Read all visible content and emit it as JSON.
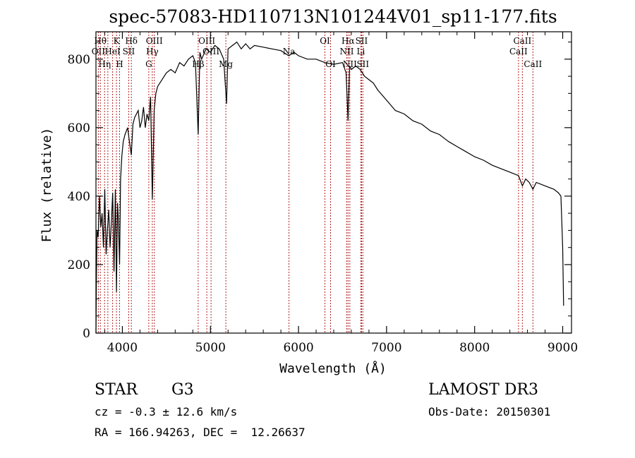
{
  "chart_data": {
    "type": "line",
    "title": "spec-57083-HD110713N101244V01_sp11-177.fits",
    "xlabel": "Wavelength (Å)",
    "ylabel": "Flux (relative)",
    "xlim": [
      3700,
      9100
    ],
    "ylim": [
      0,
      880
    ],
    "xticks": [
      4000,
      5000,
      6000,
      7000,
      8000,
      9000
    ],
    "yticks": [
      0,
      200,
      400,
      600,
      800
    ],
    "series": [
      {
        "name": "flux",
        "x": [
          3700,
          3705,
          3712,
          3725,
          3740,
          3755,
          3770,
          3785,
          3800,
          3815,
          3830,
          3845,
          3860,
          3875,
          3890,
          3905,
          3920,
          3933,
          3945,
          3955,
          3968,
          3980,
          3995,
          4010,
          4030,
          4060,
          4080,
          4101,
          4120,
          4140,
          4160,
          4180,
          4200,
          4220,
          4240,
          4260,
          4280,
          4300,
          4320,
          4340,
          4361,
          4380,
          4400,
          4450,
          4500,
          4550,
          4600,
          4650,
          4700,
          4750,
          4800,
          4830,
          4861,
          4880,
          4900,
          4950,
          5000,
          5050,
          5100,
          5150,
          5183,
          5200,
          5250,
          5300,
          5350,
          5400,
          5450,
          5500,
          5600,
          5700,
          5800,
          5890,
          5950,
          6000,
          6100,
          6200,
          6300,
          6400,
          6500,
          6540,
          6563,
          6580,
          6600,
          6650,
          6700,
          6750,
          6800,
          6850,
          6900,
          7000,
          7100,
          7200,
          7300,
          7400,
          7500,
          7600,
          7700,
          7800,
          7900,
          8000,
          8100,
          8200,
          8300,
          8400,
          8498,
          8542,
          8580,
          8620,
          8662,
          8700,
          8800,
          8900,
          8950,
          8980,
          9000,
          9010
        ],
        "y": [
          0,
          150,
          300,
          280,
          400,
          310,
          350,
          250,
          420,
          230,
          300,
          360,
          250,
          320,
          410,
          180,
          420,
          120,
          380,
          330,
          200,
          450,
          520,
          560,
          580,
          600,
          560,
          520,
          610,
          630,
          640,
          650,
          600,
          620,
          660,
          600,
          640,
          620,
          690,
          390,
          650,
          700,
          720,
          740,
          760,
          770,
          760,
          790,
          780,
          800,
          810,
          790,
          580,
          820,
          800,
          830,
          820,
          840,
          830,
          800,
          670,
          830,
          840,
          850,
          830,
          845,
          830,
          840,
          835,
          830,
          825,
          810,
          820,
          810,
          800,
          800,
          790,
          785,
          790,
          760,
          620,
          780,
          770,
          780,
          770,
          750,
          740,
          730,
          710,
          680,
          650,
          640,
          620,
          610,
          590,
          580,
          560,
          545,
          530,
          515,
          505,
          490,
          480,
          470,
          460,
          430,
          450,
          440,
          420,
          440,
          430,
          420,
          410,
          400,
          250,
          80
        ]
      }
    ],
    "line_markers": [
      {
        "wl": 3750,
        "label": "Hθ",
        "row": 1
      },
      {
        "wl": 3727,
        "label": "OII",
        "row": 2
      },
      {
        "wl": 3798,
        "label": "Hη",
        "row": 3
      },
      {
        "wl": 3835,
        "label": "",
        "row": 0
      },
      {
        "wl": 3889,
        "label": "HeI",
        "row": 2
      },
      {
        "wl": 3933,
        "label": "K",
        "row": 1
      },
      {
        "wl": 3968,
        "label": "H",
        "row": 3
      },
      {
        "wl": 4072,
        "label": "SII",
        "row": 2
      },
      {
        "wl": 4102,
        "label": "Hδ",
        "row": 1
      },
      {
        "wl": 4300,
        "label": "G",
        "row": 3
      },
      {
        "wl": 4340,
        "label": "Hγ",
        "row": 2
      },
      {
        "wl": 4363,
        "label": "OIII",
        "row": 1
      },
      {
        "wl": 4861,
        "label": "Hβ",
        "row": 3
      },
      {
        "wl": 4959,
        "label": "OIII",
        "row": 1
      },
      {
        "wl": 5007,
        "label": "OIII",
        "row": 2
      },
      {
        "wl": 5175,
        "label": "Mg",
        "row": 3
      },
      {
        "wl": 5892,
        "label": "Na",
        "row": 2
      },
      {
        "wl": 6300,
        "label": "OI",
        "row": 1
      },
      {
        "wl": 6364,
        "label": "OI",
        "row": 3
      },
      {
        "wl": 6548,
        "label": "NII",
        "row": 2
      },
      {
        "wl": 6563,
        "label": "Hα",
        "row": 1
      },
      {
        "wl": 6583,
        "label": "NII",
        "row": 3
      },
      {
        "wl": 6708,
        "label": "Li",
        "row": 2
      },
      {
        "wl": 6716,
        "label": "SII",
        "row": 1
      },
      {
        "wl": 6731,
        "label": "SII",
        "row": 3
      },
      {
        "wl": 8498,
        "label": "CaII",
        "row": 2
      },
      {
        "wl": 8542,
        "label": "CaII",
        "row": 1
      },
      {
        "wl": 8662,
        "label": "CaII",
        "row": 3
      }
    ]
  },
  "info": {
    "object_class": "STAR",
    "subclass": "G3",
    "survey": "LAMOST DR3",
    "redshift": "cz = -0.3 ± 12.6 km/s",
    "obs_date": "Obs-Date: 20150301",
    "coords": "RA = 166.94263, DEC =  12.26637"
  },
  "colors": {
    "line": "#000000",
    "marker": "#b22222",
    "axis": "#000000"
  }
}
